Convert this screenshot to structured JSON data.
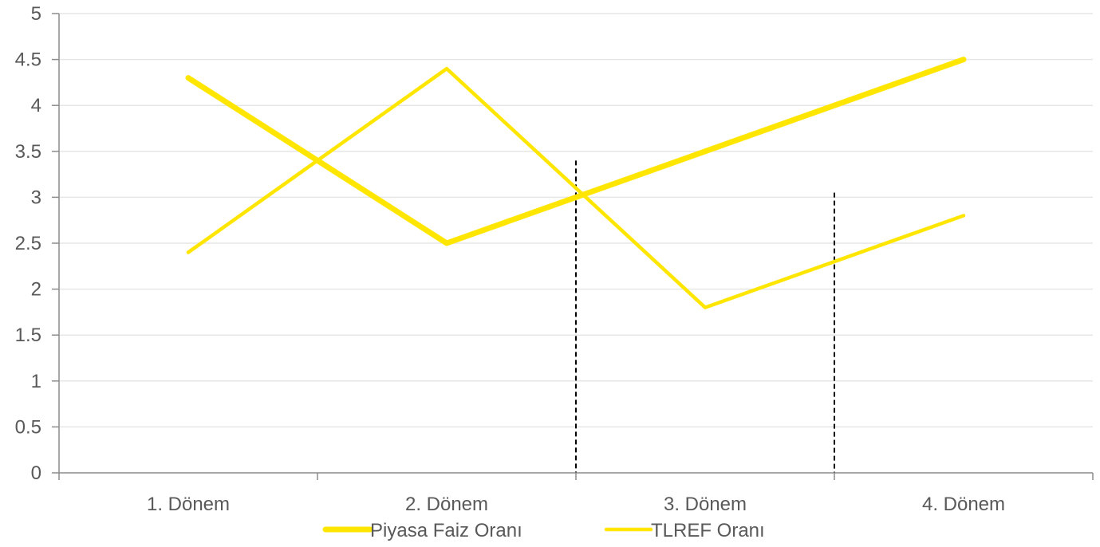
{
  "chart_data": {
    "type": "line",
    "categories": [
      "1. Dönem",
      "2. Dönem",
      "3. Dönem",
      "4. Dönem"
    ],
    "series": [
      {
        "name": "Piyasa Faiz Oranı",
        "values": [
          4.3,
          2.5,
          3.5,
          4.5
        ],
        "color": "#FFE600",
        "style": "thick"
      },
      {
        "name": "TLREF Oranı",
        "values": [
          2.4,
          4.4,
          1.8,
          2.8
        ],
        "color": "#FFE600",
        "style": "thin"
      }
    ],
    "ylim": [
      0,
      5
    ],
    "yticks": [
      "0",
      "0.5",
      "1",
      "1.5",
      "2",
      "2.5",
      "3",
      "3.5",
      "4",
      "4.5",
      "5"
    ],
    "grid": true,
    "legend_position": "bottom",
    "crossover_markers": [
      {
        "x": 1.5,
        "y": 3.4
      },
      {
        "x": 2.5,
        "y": 3.05
      }
    ],
    "title": "",
    "xlabel": "",
    "ylabel": ""
  }
}
